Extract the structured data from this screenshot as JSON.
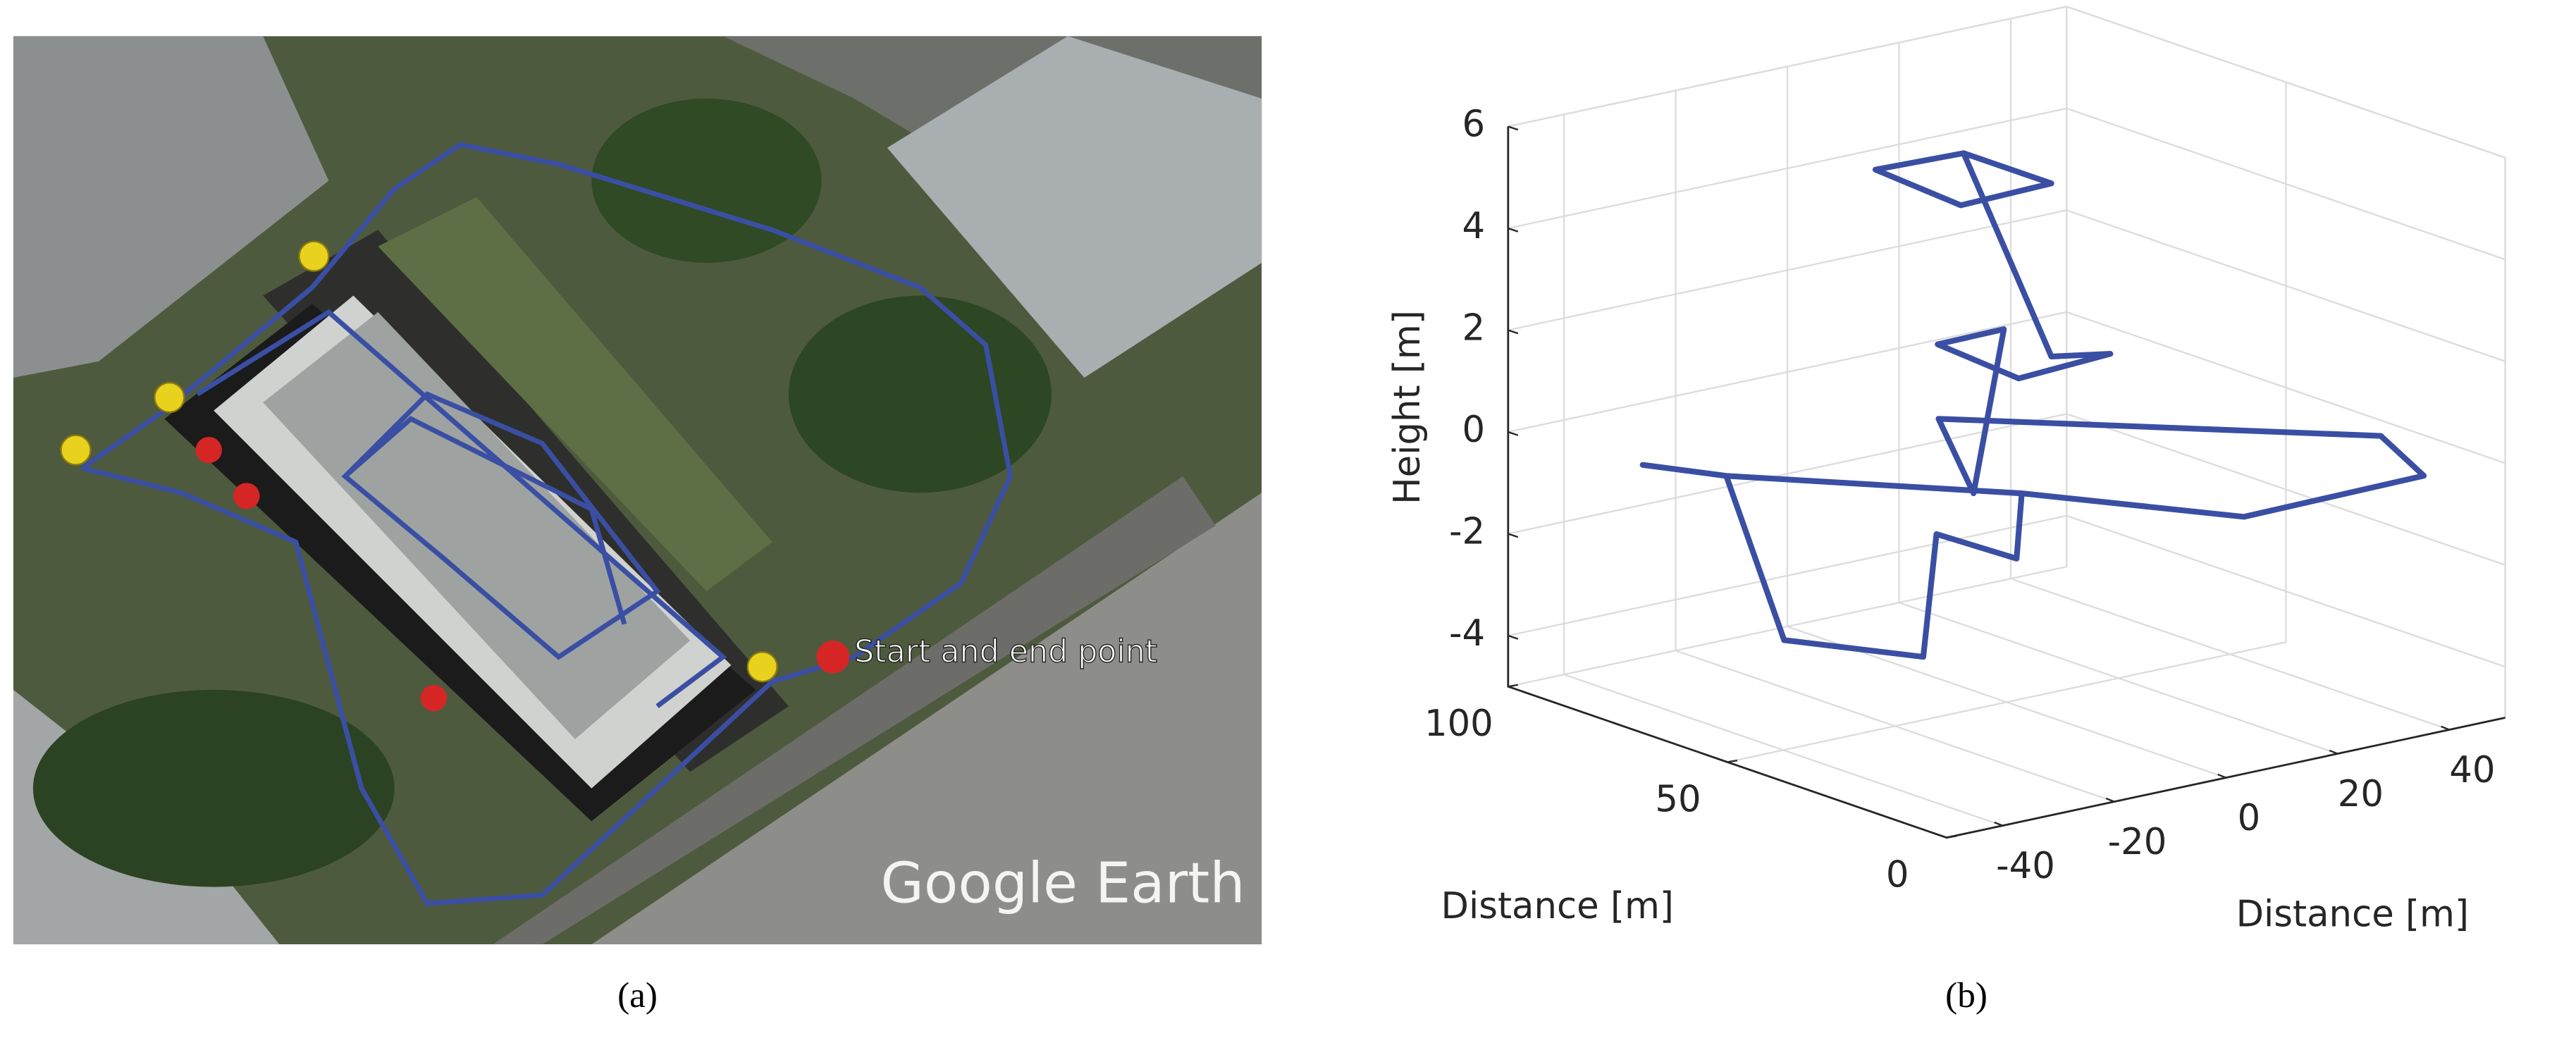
{
  "panel_a": {
    "annotation": "Start and end point",
    "watermark": "Google Earth",
    "caption": "(a)"
  },
  "chart_data": {
    "type": "line3d",
    "caption": "(b)",
    "x_label": "Distance [m]",
    "y_label": "Distance [m]",
    "z_label": "Height [m]",
    "xlim": [
      -50,
      50
    ],
    "xticks": [
      -40,
      -20,
      0,
      20,
      40
    ],
    "ylim": [
      0,
      100
    ],
    "yticks": [
      0,
      50,
      100
    ],
    "zlim": [
      -5,
      6
    ],
    "zticks": [
      -4,
      -2,
      0,
      2,
      4,
      6
    ],
    "grid": true,
    "series": [
      {
        "color": "#3a4fa3",
        "x": [
          -7,
          8,
          8,
          -9,
          -7,
          8,
          8,
          17,
          -1,
          1,
          5,
          -2,
          1.7,
          45,
          37,
          4,
          -13,
          -40,
          -45.7,
          -40,
          -21,
          -11,
          -11,
          -10,
          -13
        ],
        "y": [
          71,
          70,
          50,
          49,
          71,
          70,
          50,
          48,
          46,
          67,
          57,
          55,
          67.7,
          22,
          2,
          1,
          30,
          63,
          74.8,
          63,
          74,
          55,
          52,
          35,
          30
        ],
        "z": [
          5,
          5,
          5,
          5,
          5,
          5,
          1.6,
          1.5,
          1.5,
          1.5,
          2,
          -1,
          0,
          0,
          0,
          0,
          0,
          0,
          0,
          0,
          -4,
          -4,
          -1.5,
          -1.5,
          0
        ]
      }
    ]
  }
}
